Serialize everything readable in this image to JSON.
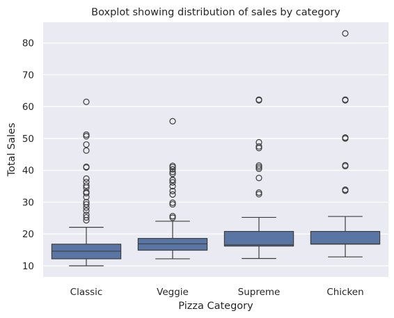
{
  "chart_data": {
    "type": "box",
    "title": "Boxplot showing distribution of sales by category",
    "xlabel": "Pizza Category",
    "ylabel": "Total Sales",
    "ylim": [
      6.5,
      86.5
    ],
    "yticks": [
      10,
      20,
      30,
      40,
      50,
      60,
      70,
      80
    ],
    "grid": true,
    "colors": {
      "background": "#eaeaf2",
      "grid": "#ffffff",
      "box_fill": "#5975a4",
      "line": "#3d3d3d"
    },
    "categories": [
      "Classic",
      "Veggie",
      "Supreme",
      "Chicken"
    ],
    "boxes": [
      {
        "category": "Classic",
        "whisker_low": 10,
        "q1": 12.2,
        "median": 14.6,
        "q3": 16.8,
        "whisker_high": 22.1,
        "outliers": [
          24.3,
          25.2,
          26.0,
          27.3,
          28.3,
          29.3,
          30.0,
          31.6,
          32.8,
          33.2,
          34.6,
          35.2,
          36.3,
          37.4,
          40.9,
          41.1,
          46.2,
          48.1,
          50.7,
          51.2,
          61.5
        ]
      },
      {
        "category": "Veggie",
        "whisker_low": 12.2,
        "q1": 14.9,
        "median": 16.9,
        "q3": 18.6,
        "whisker_high": 24.0,
        "outliers": [
          25.1,
          25.6,
          29.3,
          29.8,
          32.4,
          33.5,
          35.0,
          36.2,
          36.9,
          37.0,
          38.9,
          39.5,
          40.3,
          41.0,
          41.4,
          55.4
        ]
      },
      {
        "category": "Supreme",
        "whisker_low": 12.3,
        "q1": 16.2,
        "median": 16.6,
        "q3": 20.8,
        "whisker_high": 25.2,
        "outliers": [
          32.5,
          33.0,
          37.6,
          40.5,
          41.0,
          41.5,
          47.0,
          47.5,
          48.8,
          62.0,
          62.2
        ]
      },
      {
        "category": "Chicken",
        "whisker_low": 12.8,
        "q1": 16.8,
        "median": 16.9,
        "q3": 20.8,
        "whisker_high": 25.5,
        "outliers": [
          33.6,
          33.9,
          41.3,
          41.6,
          50.0,
          50.3,
          62.0,
          62.2,
          83.0
        ]
      }
    ]
  }
}
